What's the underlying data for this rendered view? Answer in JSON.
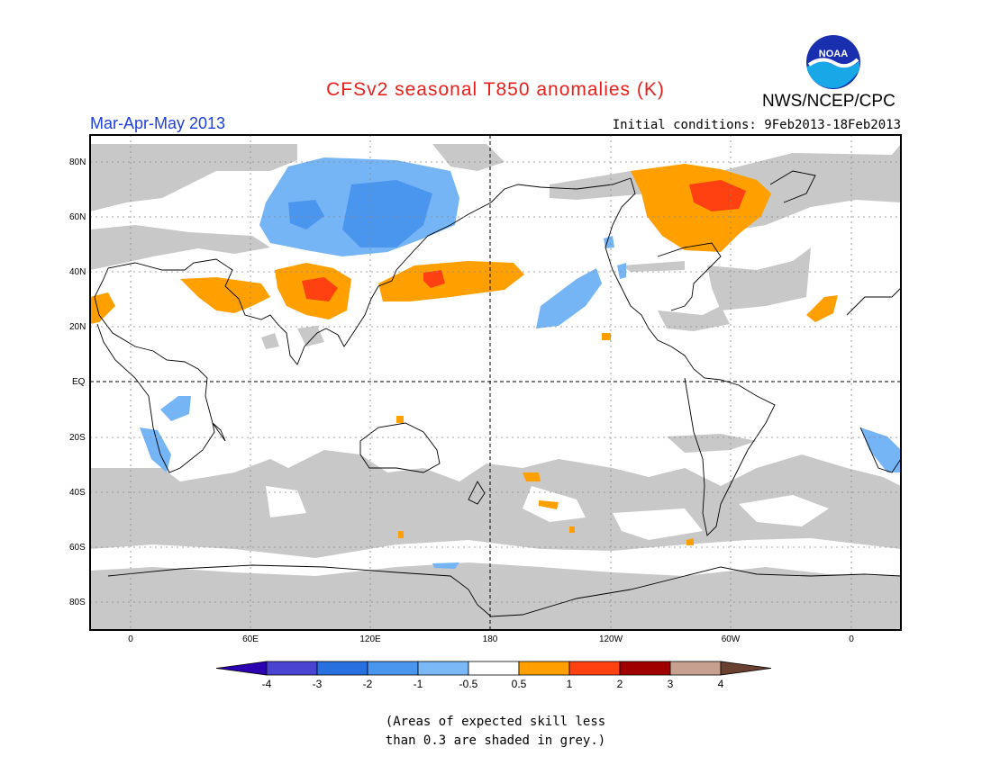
{
  "header": {
    "title": "CFSv2 seasonal T850 anomalies (K)",
    "season": "Mar-Apr-May 2013",
    "initial_conditions": "Initial conditions: 9Feb2013-18Feb2013",
    "agency": "NWS/NCEP/CPC",
    "logo_text": "NOAA"
  },
  "colors": {
    "title": "#e8201c",
    "season": "#1f3fe0",
    "grey_skill": "#c8c8c8",
    "light_blue": "#75b4f5",
    "orange": "#ffa000",
    "red_orange": "#ff4010"
  },
  "axes": {
    "lat_labels": [
      "80N",
      "60N",
      "40N",
      "20N",
      "EQ",
      "20S",
      "40S",
      "60S",
      "80S"
    ],
    "lon_labels": [
      "0",
      "60E",
      "120E",
      "180",
      "120W",
      "60W",
      "0"
    ]
  },
  "colorbar": {
    "labels": [
      "-4",
      "-3",
      "-2",
      "-1",
      "-0.5",
      "0.5",
      "1",
      "2",
      "3",
      "4"
    ],
    "colors": [
      "#2a00b0",
      "#4a42d0",
      "#2870e0",
      "#4a96ee",
      "#7ab8f7",
      "#ffffff",
      "#ffa000",
      "#ff4010",
      "#a00000",
      "#c8a090",
      "#6a4030"
    ]
  },
  "note": {
    "line1": "(Areas of expected skill less",
    "line2": "than 0.3 are shaded in grey.)"
  }
}
